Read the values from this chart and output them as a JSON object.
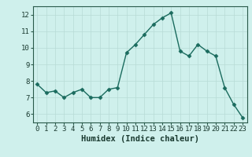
{
  "x": [
    0,
    1,
    2,
    3,
    4,
    5,
    6,
    7,
    8,
    9,
    10,
    11,
    12,
    13,
    14,
    15,
    16,
    17,
    18,
    19,
    20,
    21,
    22,
    23
  ],
  "y": [
    7.8,
    7.3,
    7.4,
    7.0,
    7.3,
    7.5,
    7.0,
    7.0,
    7.5,
    7.6,
    9.7,
    10.2,
    10.8,
    11.4,
    11.8,
    12.1,
    9.8,
    9.5,
    10.2,
    9.8,
    9.5,
    7.6,
    6.6,
    5.8
  ],
  "line_color": "#1a6b5e",
  "marker": "D",
  "marker_size": 2.5,
  "bg_color": "#cff0ec",
  "grid_color": "#b8dbd6",
  "xlabel": "Humidex (Indice chaleur)",
  "xlim": [
    -0.5,
    23.5
  ],
  "ylim": [
    5.5,
    12.5
  ],
  "yticks": [
    6,
    7,
    8,
    9,
    10,
    11,
    12
  ],
  "xticks": [
    0,
    1,
    2,
    3,
    4,
    5,
    6,
    7,
    8,
    9,
    10,
    11,
    12,
    13,
    14,
    15,
    16,
    17,
    18,
    19,
    20,
    21,
    22,
    23
  ],
  "tick_color": "#1a3a30",
  "axis_color": "#2a5a4a",
  "xlabel_fontsize": 7.5,
  "tick_fontsize": 6.5,
  "linewidth": 1.0
}
